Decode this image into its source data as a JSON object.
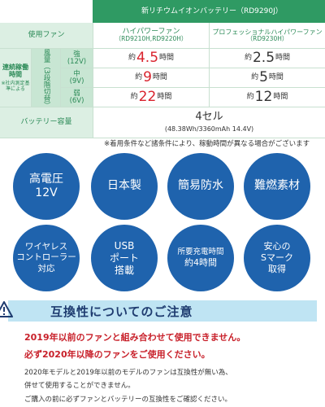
{
  "table": {
    "header_battery": "新リチウムイオンバッテリー（RD9290J）",
    "header_fan_label": "使用ファン",
    "col2": {
      "title": "ハイパワーファン",
      "models": "（RD9210H,RD9220H）"
    },
    "col3": {
      "title": "プロフェッショナルハイパワーファン",
      "models": "（RD9230H）"
    },
    "runtime_label": "連続稼働時間",
    "runtime_note": "※社内測定基準による",
    "airflow_label": "風量（3段階切替）",
    "rows": [
      {
        "level": "強",
        "volt": "(12V)",
        "col2_pre": "約",
        "col2_num": "4.5",
        "col2_unit": "時間",
        "col3_pre": "約",
        "col3_num": "2.5",
        "col3_unit": "時間"
      },
      {
        "level": "中",
        "volt": "(9V)",
        "col2_pre": "約",
        "col2_num": "9",
        "col2_unit": "時間",
        "col3_pre": "約",
        "col3_num": "5",
        "col3_unit": "時間"
      },
      {
        "level": "弱",
        "volt": "(6V)",
        "col2_pre": "約",
        "col2_num": "22",
        "col2_unit": "時間",
        "col3_pre": "約",
        "col3_num": "12",
        "col3_unit": "時間"
      }
    ],
    "battery_label": "バッテリー容量",
    "battery_cells": "4セル",
    "battery_spec": "(48.38Wh/3360mAh 14.4V)",
    "footnote": "※着用条件など諸条件により、稼動時間が異なる場合がございます"
  },
  "features": [
    {
      "line1": "高電圧",
      "line2": "12V",
      "line3": ""
    },
    {
      "line1": "日本製",
      "line2": "",
      "line3": ""
    },
    {
      "line1": "簡易防水",
      "line2": "",
      "line3": ""
    },
    {
      "line1": "難燃素材",
      "line2": "",
      "line3": ""
    },
    {
      "line1": "ワイヤレス",
      "line2": "コントローラー",
      "line3": "対応"
    },
    {
      "line1": "USB",
      "line2": "ポート",
      "line3": "搭載"
    },
    {
      "line1": "所要充電時間",
      "line2": "約4時間",
      "line3": ""
    },
    {
      "line1": "安心の",
      "line2": "Sマーク",
      "line3": "取得"
    }
  ],
  "notice": {
    "title": "互換性についてのご注意",
    "red_line1": "2019年以前のファンと組み合わせて使用できません。",
    "red_line2": "必ず2020年以降のファンをご使用ください。",
    "line1": "2020年モデルと2019年以前のモデルのファンは互換性が無い為、",
    "line2": "併せて使用することができません。",
    "line3": "ご購入の前に必ずファンとバッテリーの互換性をご確認ください。"
  },
  "colors": {
    "green": "#2f9a63",
    "blue": "#1f63ad",
    "red": "#d9232d",
    "light_blue": "#bfe4f3"
  }
}
